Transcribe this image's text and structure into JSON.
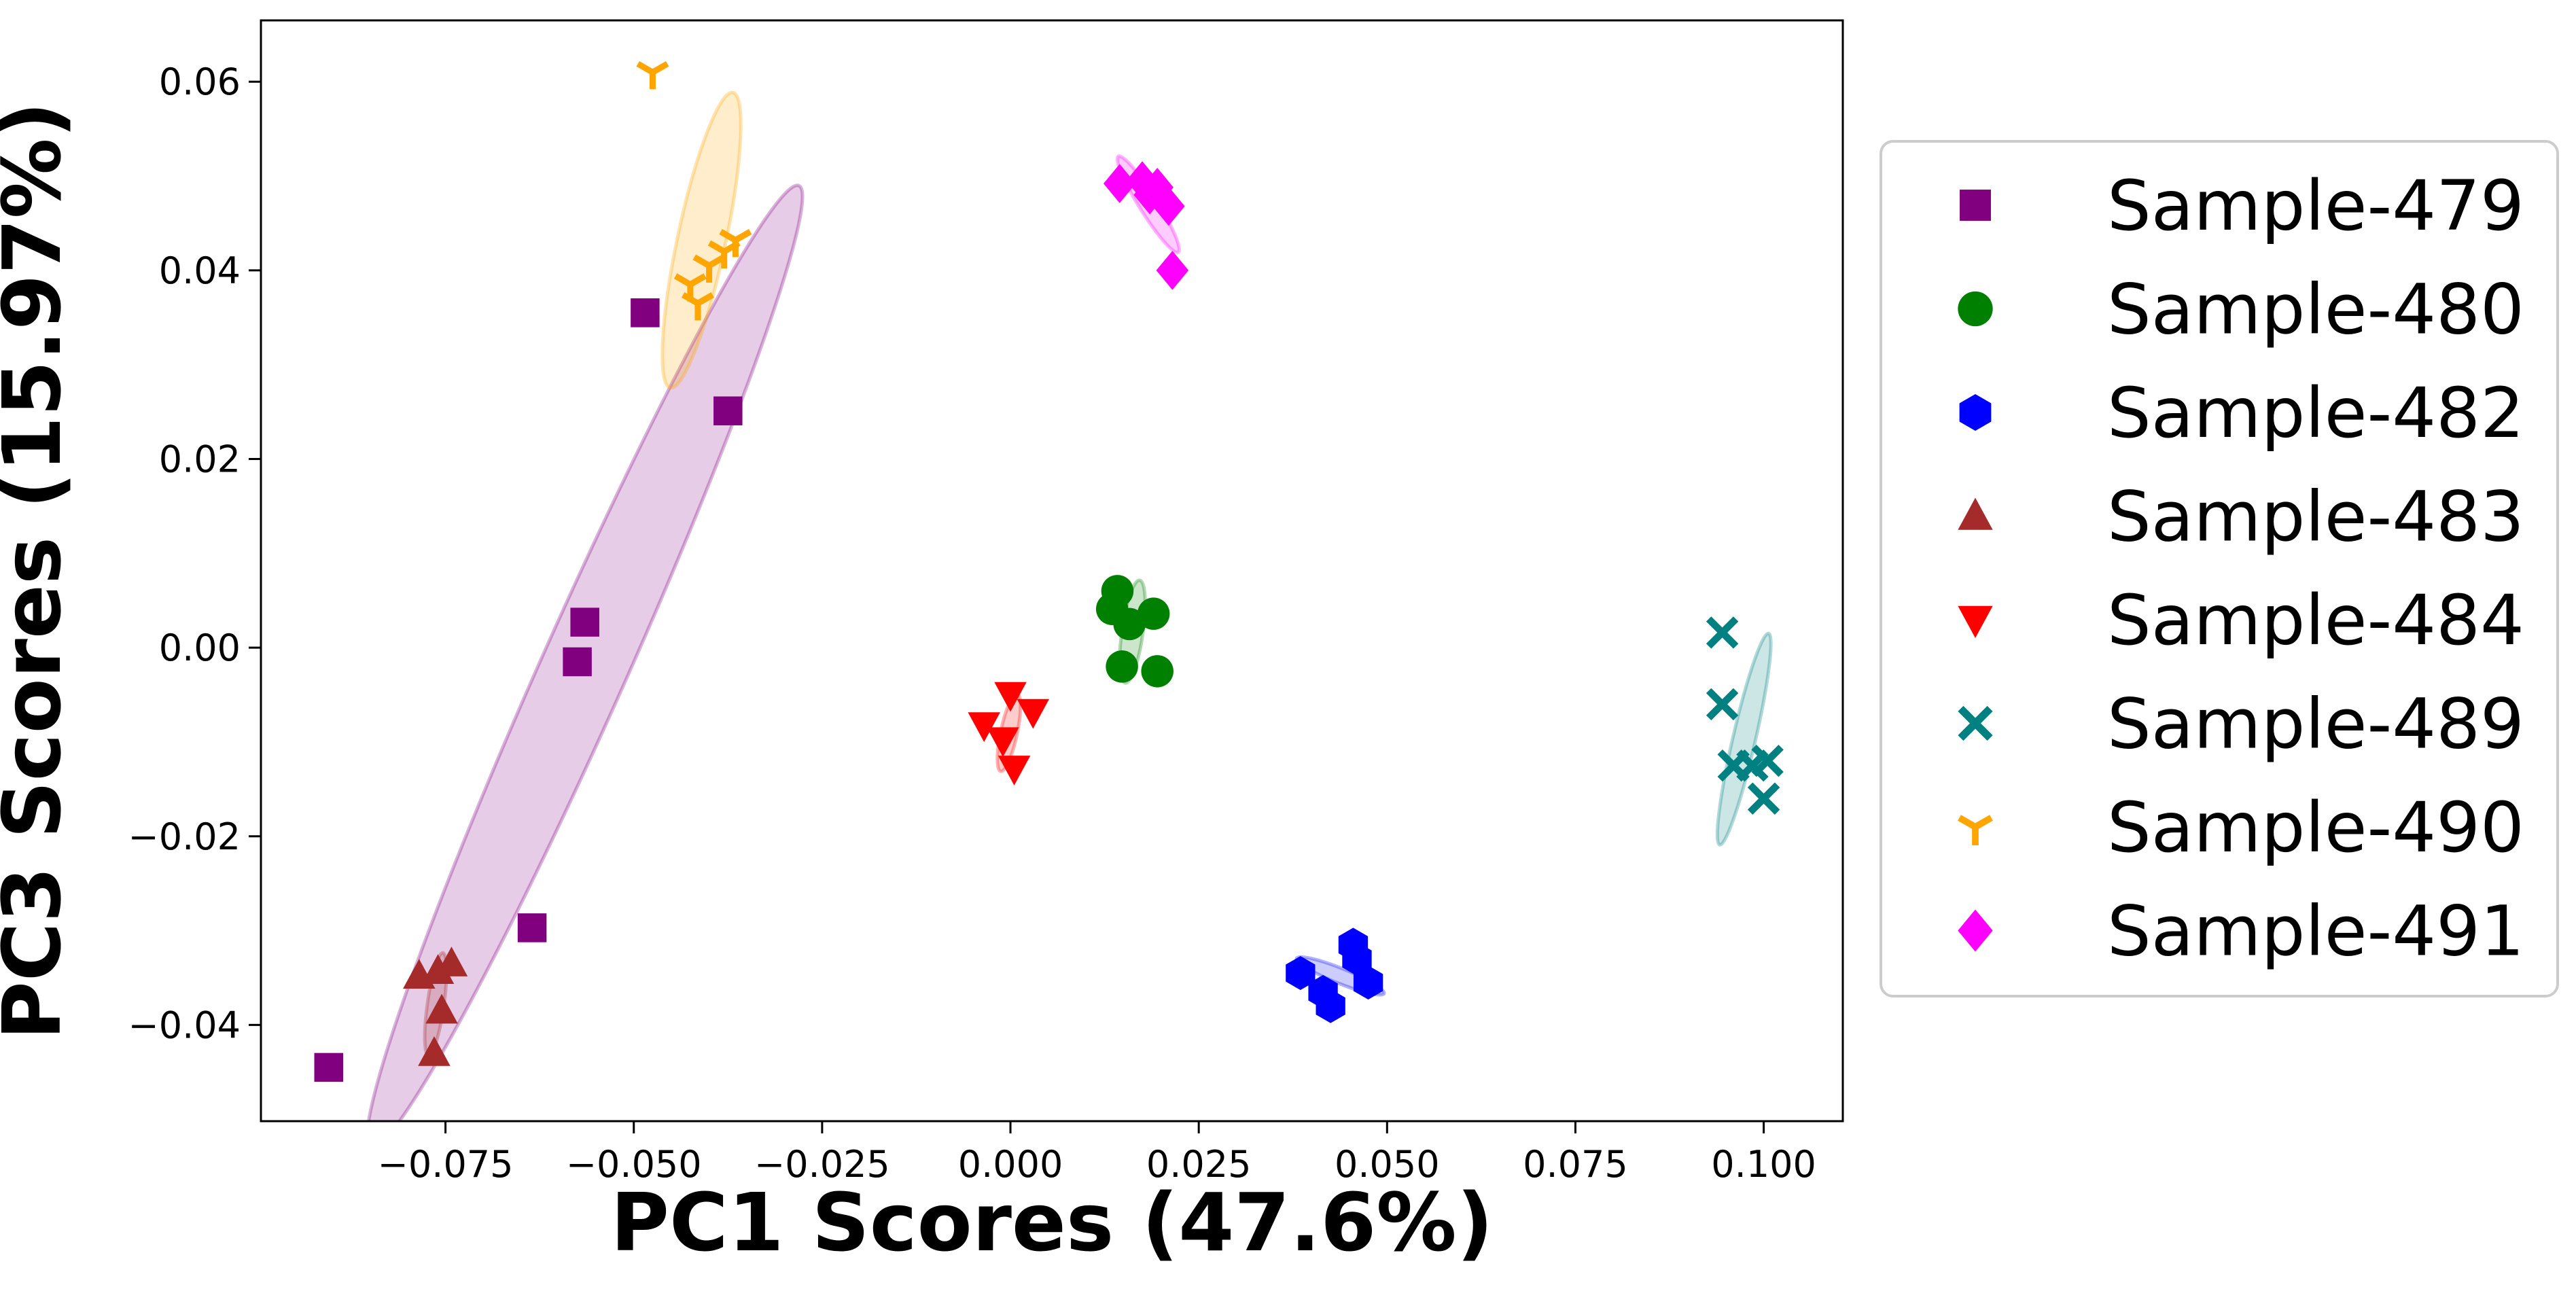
{
  "chart_data": {
    "type": "scatter",
    "title": "",
    "xlabel": "PC1 Scores (47.6%)",
    "ylabel": "PC3 Scores (15.97%)",
    "xlim": [
      -0.0995,
      0.1105
    ],
    "ylim": [
      -0.0502,
      0.0665
    ],
    "x_ticks": [
      -0.075,
      -0.05,
      -0.025,
      0.0,
      0.025,
      0.05,
      0.075,
      0.1
    ],
    "x_tick_labels": [
      "−0.075",
      "−0.050",
      "−0.025",
      "0.000",
      "0.025",
      "0.050",
      "0.075",
      "0.100"
    ],
    "y_ticks": [
      -0.04,
      -0.02,
      0.0,
      0.02,
      0.04,
      0.06
    ],
    "y_tick_labels": [
      "−0.04",
      "−0.02",
      "0.00",
      "0.02",
      "0.04",
      "0.06"
    ],
    "grid": false,
    "legend_position": "outside-right",
    "confidence_ellipses": true,
    "series": [
      {
        "name": "Sample-479",
        "color": "#800080",
        "marker": "square",
        "x": [
          -0.0905,
          -0.0635,
          -0.0575,
          -0.0565,
          -0.0485,
          -0.0375
        ],
        "y": [
          -0.0445,
          -0.0297,
          -0.0015,
          0.0027,
          0.0355,
          0.0251
        ],
        "ellipse": {
          "cx": -0.0565,
          "cy": -0.002,
          "rx": 0.0558,
          "ry": 0.0057,
          "angle_deg": 66
        }
      },
      {
        "name": "Sample-480",
        "color": "#008000",
        "marker": "circle",
        "x": [
          0.0135,
          0.0142,
          0.0158,
          0.019,
          0.0148,
          0.0195
        ],
        "y": [
          0.0041,
          0.006,
          0.0025,
          0.0036,
          -0.002,
          -0.0025
        ],
        "ellipse": {
          "cx": 0.0162,
          "cy": 0.0017,
          "rx": 0.0055,
          "ry": 0.0014,
          "angle_deg": 82
        }
      },
      {
        "name": "Sample-482",
        "color": "#0000ff",
        "marker": "hexagon",
        "x": [
          0.0385,
          0.0415,
          0.0425,
          0.0455,
          0.046,
          0.0475
        ],
        "y": [
          -0.0345,
          -0.0365,
          -0.038,
          -0.0315,
          -0.033,
          -0.0355
        ],
        "ellipse": {
          "cx": 0.0438,
          "cy": -0.0348,
          "rx": 0.005,
          "ry": 0.001,
          "angle_deg": -22
        }
      },
      {
        "name": "Sample-483",
        "color": "#a52a2a",
        "marker": "triangle-up",
        "x": [
          -0.0785,
          -0.076,
          -0.0742,
          -0.0755,
          -0.0765
        ],
        "y": [
          -0.0348,
          -0.0343,
          -0.0335,
          -0.0385,
          -0.043
        ],
        "ellipse": {
          "cx": -0.0763,
          "cy": -0.0378,
          "rx": 0.0055,
          "ry": 0.0011,
          "angle_deg": 82
        }
      },
      {
        "name": "Sample-484",
        "color": "#ff0000",
        "marker": "triangle-down",
        "x": [
          -0.0035,
          0.0,
          -0.001,
          0.003,
          0.0005
        ],
        "y": [
          -0.0082,
          -0.005,
          -0.0098,
          -0.0068,
          -0.0128
        ],
        "ellipse": {
          "cx": -0.0002,
          "cy": -0.009,
          "rx": 0.0042,
          "ry": 0.0011,
          "angle_deg": 78
        }
      },
      {
        "name": "Sample-489",
        "color": "#008080",
        "marker": "x",
        "x": [
          0.0945,
          0.0945,
          0.096,
          0.0985,
          0.1005,
          0.1
        ],
        "y": [
          0.0016,
          -0.006,
          -0.0125,
          -0.0125,
          -0.012,
          -0.016
        ],
        "ellipse": {
          "cx": 0.0974,
          "cy": -0.0097,
          "rx": 0.0115,
          "ry": 0.0015,
          "angle_deg": 77
        }
      },
      {
        "name": "Sample-490",
        "color": "#ffa500",
        "marker": "tri-down",
        "x": [
          -0.0475,
          -0.0425,
          -0.0415,
          -0.04,
          -0.038,
          -0.0365
        ],
        "y": [
          0.061,
          0.0385,
          0.0365,
          0.0405,
          0.042,
          0.0432
        ],
        "ellipse": {
          "cx": -0.041,
          "cy": 0.0432,
          "rx": 0.016,
          "ry": 0.0032,
          "angle_deg": 78
        }
      },
      {
        "name": "Sample-491",
        "color": "#ff00ff",
        "marker": "diamond",
        "x": [
          0.0145,
          0.0175,
          0.0195,
          0.0185,
          0.021,
          0.0215
        ],
        "y": [
          0.0492,
          0.0495,
          0.0488,
          0.048,
          0.0468,
          0.04
        ],
        "ellipse": {
          "cx": 0.0183,
          "cy": 0.047,
          "rx": 0.006,
          "ry": 0.0012,
          "angle_deg": -58
        }
      }
    ]
  }
}
